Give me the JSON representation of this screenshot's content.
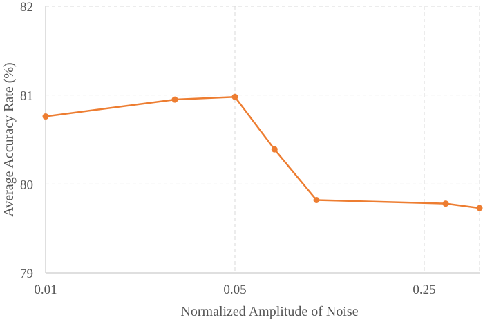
{
  "chart_data": {
    "type": "line",
    "title": "",
    "xlabel": "Normalized Amplitude of Noise",
    "ylabel": "Average Accuracy Rate (%)",
    "x_scale": "log",
    "xlim": [
      0.01,
      0.4
    ],
    "ylim": [
      79,
      82
    ],
    "x_ticks": [
      0.01,
      0.05,
      0.25
    ],
    "x_tick_labels": [
      "0.01",
      "0.05",
      "0.25"
    ],
    "y_ticks": [
      79,
      80,
      81,
      82
    ],
    "y_tick_labels": [
      "79",
      "80",
      "81",
      "82"
    ],
    "grid": true,
    "legend": "none",
    "series": [
      {
        "color": "#ED7D31",
        "x": [
          0.01,
          0.03,
          0.05,
          0.07,
          0.1,
          0.3,
          0.4
        ],
        "y": [
          80.76,
          80.95,
          80.98,
          80.39,
          79.82,
          79.78,
          79.73
        ]
      }
    ]
  }
}
